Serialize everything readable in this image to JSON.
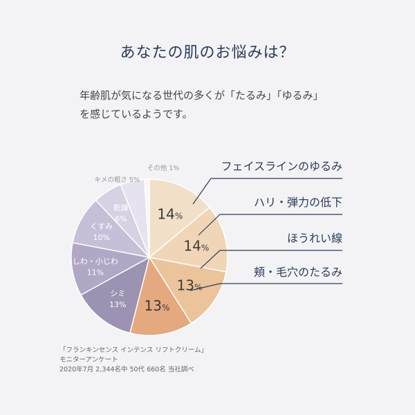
{
  "title": "あなたの肌のお悩みは？",
  "subtitle": {
    "line1": "年齢肌が気になる世代の多くが「たるみ」「ゆるみ」",
    "line2": "を感じているようです。"
  },
  "note": {
    "line1": "「フランキンセンス インテンス リフトクリーム」",
    "line2": "モニターアンケート",
    "line3": "2020年7月 2,344名中 50代 660名 当社調べ"
  },
  "chart_data": {
    "type": "pie",
    "unit": "%",
    "slices": [
      {
        "label": "フェイスラインのゆるみ",
        "value": 14,
        "color": "#f1dfc8",
        "labelColor": "#3b3b3b"
      },
      {
        "label": "ハリ・弾力の低下",
        "value": 14,
        "color": "#f0d6b6",
        "labelColor": "#3b3b3b"
      },
      {
        "label": "ほうれい線",
        "value": 13,
        "color": "#ebc49b",
        "labelColor": "#3b3b3b"
      },
      {
        "label": "頬・毛穴のたるみ",
        "value": 13,
        "color": "#e4a97e",
        "labelColor": "#3b3b3b"
      },
      {
        "label": "シミ",
        "value": 13,
        "color": "#9c92b2",
        "labelColor": "#ffffff"
      },
      {
        "label": "しわ・小じわ",
        "value": 11,
        "color": "#b1a8c6",
        "labelColor": "#ffffff"
      },
      {
        "label": "くすみ",
        "value": 10,
        "color": "#c6bfd7",
        "labelColor": "#ffffff"
      },
      {
        "label": "乾燥",
        "value": 6,
        "color": "#d7d1e3",
        "labelColor": "#ffffff"
      },
      {
        "label": "キメの粗さ",
        "value": 5,
        "color": "#e6e2ee",
        "labelColor": "#9a9a9a"
      },
      {
        "label": "その他",
        "value": 1,
        "color": "#f7f6fa",
        "labelColor": "#9a9a9a"
      }
    ],
    "calloutColor": "#2b3a5c"
  }
}
